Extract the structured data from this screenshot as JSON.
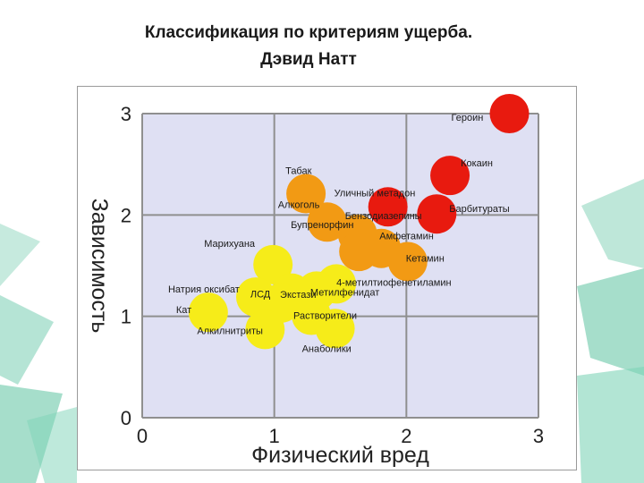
{
  "title": {
    "line1": "Классификация по критериям ущерба.",
    "line2": "Дэвид Натт"
  },
  "colors": {
    "plot_background": "#dfe0f3",
    "grid": "#8f8f8f",
    "red": "#e81a0f",
    "orange": "#f29a14",
    "yellow": "#f6ec19",
    "decoration_green": "#5cc3a1"
  },
  "chart_data": {
    "type": "scatter",
    "title": "",
    "xlabel": "Физический вред",
    "ylabel": "Зависимость",
    "xlim": [
      0,
      3
    ],
    "ylim": [
      0,
      3
    ],
    "xticks": [
      "0",
      "1",
      "2",
      "3"
    ],
    "yticks": [
      "0",
      "1",
      "2",
      "3"
    ],
    "grid": true,
    "points": [
      {
        "label": "Героин",
        "x": 2.78,
        "y": 3.0,
        "color": "red"
      },
      {
        "label": "Кокаин",
        "x": 2.33,
        "y": 2.39,
        "color": "red"
      },
      {
        "label": "Барбитураты",
        "x": 2.23,
        "y": 2.01,
        "color": "red"
      },
      {
        "label": "Уличный метадон",
        "x": 1.86,
        "y": 2.08,
        "color": "red"
      },
      {
        "label": "Табак",
        "x": 1.24,
        "y": 2.21,
        "color": "orange"
      },
      {
        "label": "Алкоголь",
        "x": 1.4,
        "y": 1.93,
        "color": "orange"
      },
      {
        "label": "Бензодиазепины",
        "x": 1.63,
        "y": 1.81,
        "color": "orange"
      },
      {
        "label": "Бупренорфин",
        "x": 1.64,
        "y": 1.64,
        "color": "orange"
      },
      {
        "label": "Амфетамин",
        "x": 1.81,
        "y": 1.67,
        "color": "orange"
      },
      {
        "label": "Кетамин",
        "x": 2.01,
        "y": 1.54,
        "color": "orange"
      },
      {
        "label": "Марихуана",
        "x": 0.99,
        "y": 1.51,
        "color": "yellow"
      },
      {
        "label": "4-метилтиофенетиламин",
        "x": 1.47,
        "y": 1.32,
        "color": "yellow"
      },
      {
        "label": "Метилфенидат",
        "x": 1.32,
        "y": 1.25,
        "color": "yellow"
      },
      {
        "label": "ЛСД",
        "x": 1.13,
        "y": 1.23,
        "color": "yellow"
      },
      {
        "label": "Натрия оксибат",
        "x": 0.86,
        "y": 1.19,
        "color": "yellow"
      },
      {
        "label": "Кат",
        "x": 0.5,
        "y": 1.04,
        "color": "yellow"
      },
      {
        "label": "Экстази",
        "x": 1.05,
        "y": 1.13,
        "color": "yellow"
      },
      {
        "label": "Растворители",
        "x": 1.28,
        "y": 1.01,
        "color": "yellow"
      },
      {
        "label": "Алкилнитриты",
        "x": 0.93,
        "y": 0.87,
        "color": "yellow"
      },
      {
        "label": "Анаболики",
        "x": 1.46,
        "y": 0.88,
        "color": "yellow"
      }
    ]
  }
}
